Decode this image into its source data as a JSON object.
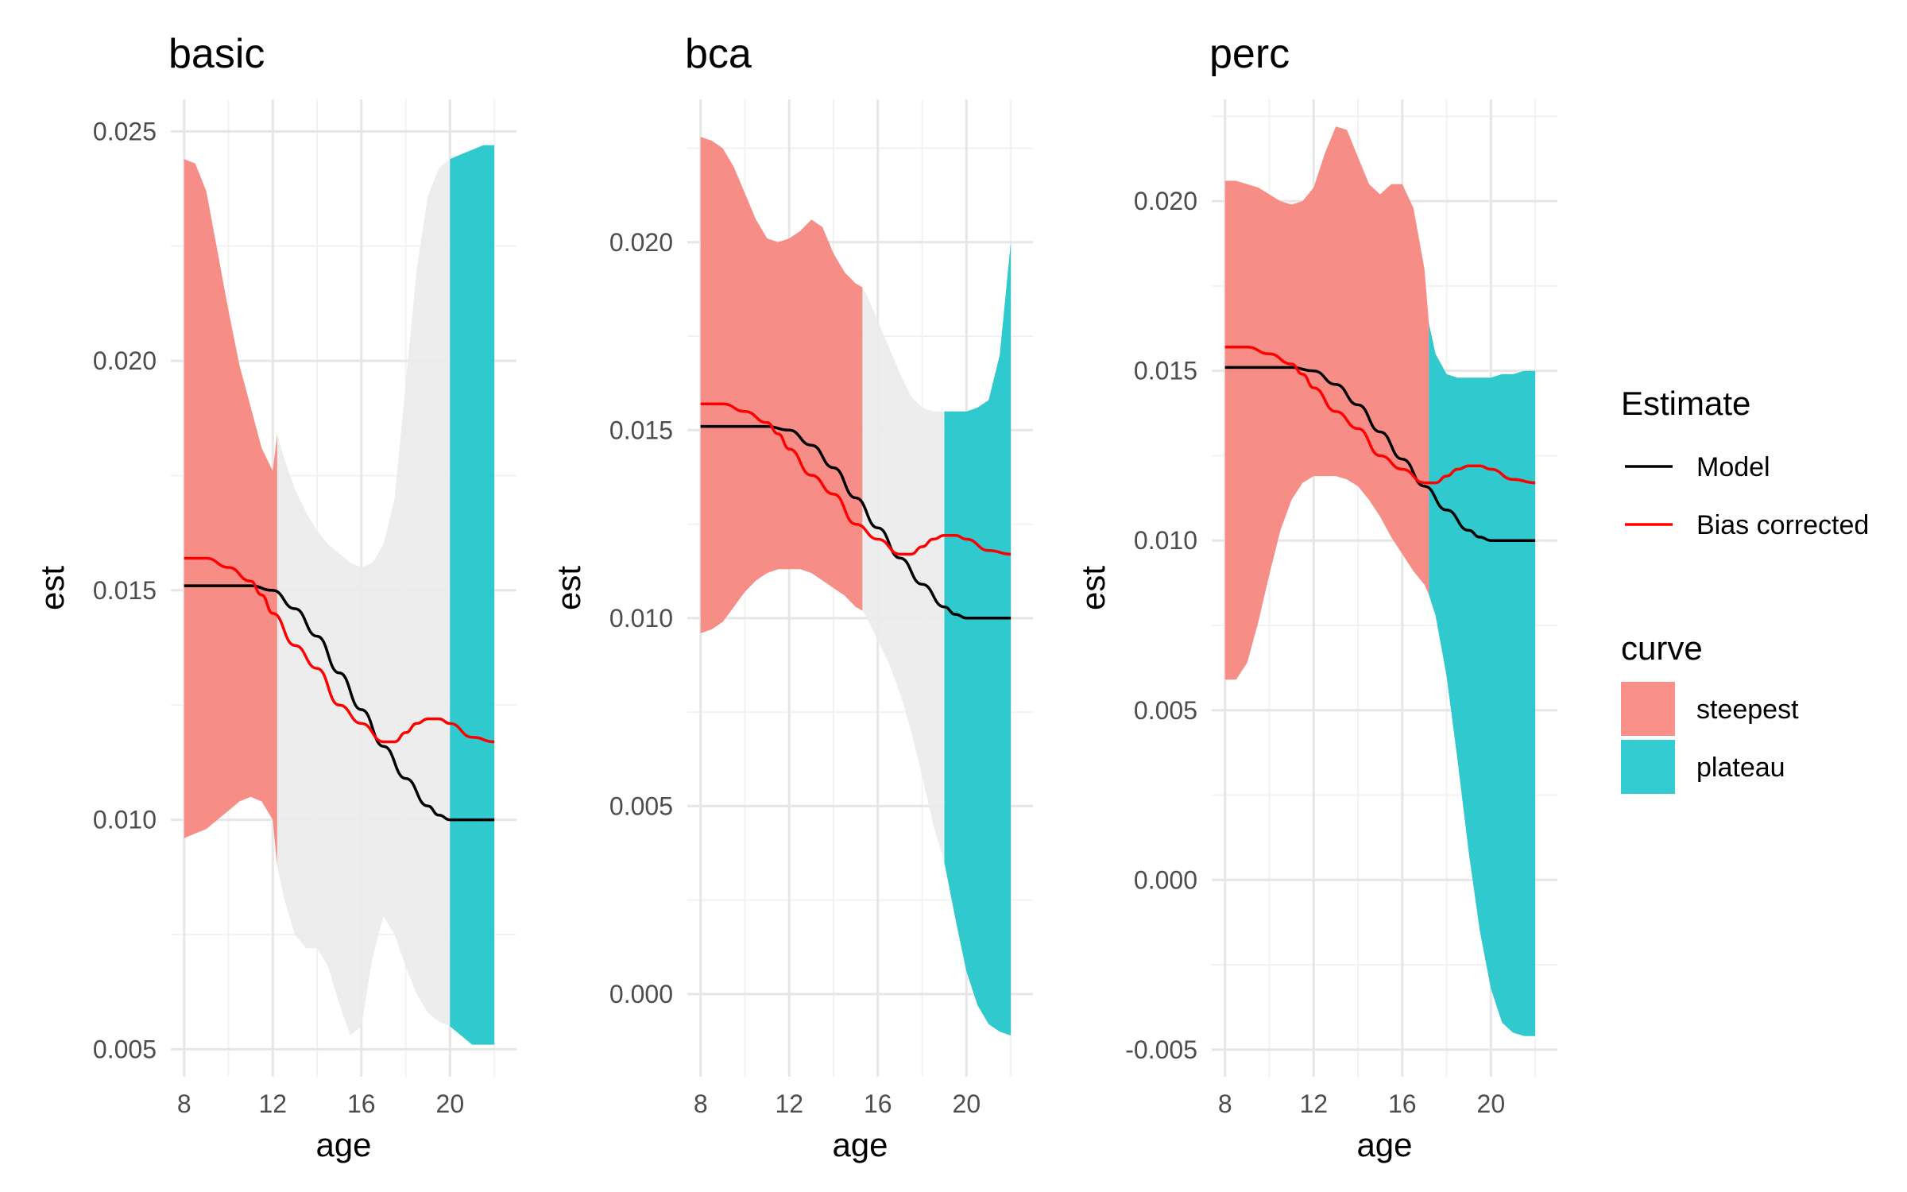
{
  "chart_data": [
    {
      "type": "area",
      "title": "basic",
      "xlabel": "age",
      "ylabel": "est",
      "xlim": [
        7.4,
        23.0
      ],
      "ylim": [
        0.0044,
        0.0257
      ],
      "x_ticks": [
        8,
        12,
        16,
        20
      ],
      "x_tick_labels": [
        "8",
        "12",
        "16",
        "20"
      ],
      "y_ticks": [
        0.005,
        0.01,
        0.015,
        0.02,
        0.025
      ],
      "y_tick_labels": [
        "0.005",
        "0.010",
        "0.015",
        "0.020",
        "0.025"
      ],
      "grid": true,
      "ribbon": {
        "x": [
          8,
          8.5,
          9,
          9.5,
          10,
          10.5,
          11,
          11.5,
          12,
          12.2,
          12.5,
          13,
          13.5,
          14,
          14.5,
          15,
          15.5,
          16,
          16.5,
          17,
          17.5,
          18,
          18.5,
          19,
          19.5,
          20,
          20.5,
          21,
          21.5,
          22
        ],
        "upper": [
          0.0244,
          0.0243,
          0.0237,
          0.0224,
          0.0211,
          0.0199,
          0.019,
          0.0181,
          0.0176,
          0.0184,
          0.0179,
          0.0172,
          0.0167,
          0.0163,
          0.016,
          0.0158,
          0.0156,
          0.0155,
          0.0156,
          0.016,
          0.017,
          0.0195,
          0.022,
          0.0236,
          0.0242,
          0.0244,
          0.0245,
          0.0246,
          0.0247,
          0.0247
        ],
        "lower": [
          0.0096,
          0.0097,
          0.0098,
          0.01,
          0.0102,
          0.0104,
          0.0105,
          0.0104,
          0.01,
          0.009,
          0.0083,
          0.0075,
          0.0072,
          0.0072,
          0.0068,
          0.006,
          0.0053,
          0.0055,
          0.007,
          0.0079,
          0.0075,
          0.0068,
          0.0062,
          0.0058,
          0.0056,
          0.0055,
          0.0053,
          0.0051,
          0.0051,
          0.0051
        ],
        "steepest_range": [
          8,
          12.2
        ],
        "plateau_range": [
          20,
          22
        ]
      },
      "series": [
        {
          "name": "Model",
          "x": [
            8,
            9,
            10,
            11,
            12,
            13,
            14,
            15,
            16,
            17,
            18,
            19,
            19.5,
            20,
            21,
            22
          ],
          "values": [
            0.0151,
            0.0151,
            0.0151,
            0.0151,
            0.015,
            0.0146,
            0.014,
            0.0132,
            0.0124,
            0.0116,
            0.0109,
            0.0103,
            0.0101,
            0.01,
            0.01,
            0.01
          ]
        },
        {
          "name": "Bias corrected",
          "x": [
            8,
            9,
            10,
            11,
            11.5,
            12,
            13,
            14,
            15,
            16,
            17,
            17.5,
            18,
            18.5,
            19,
            19.5,
            20,
            21,
            22
          ],
          "values": [
            0.0157,
            0.0157,
            0.0155,
            0.0152,
            0.0149,
            0.0145,
            0.0138,
            0.0133,
            0.0125,
            0.0121,
            0.0117,
            0.0117,
            0.0119,
            0.0121,
            0.0122,
            0.0122,
            0.0121,
            0.0118,
            0.0117
          ]
        }
      ]
    },
    {
      "type": "area",
      "title": "bca",
      "xlabel": "age",
      "ylabel": "est",
      "xlim": [
        7.4,
        23.0
      ],
      "ylim": [
        -0.0022,
        0.0238
      ],
      "x_ticks": [
        8,
        12,
        16,
        20
      ],
      "x_tick_labels": [
        "8",
        "12",
        "16",
        "20"
      ],
      "y_ticks": [
        0.0,
        0.005,
        0.01,
        0.015,
        0.02
      ],
      "y_tick_labels": [
        "0.000",
        "0.005",
        "0.010",
        "0.015",
        "0.020"
      ],
      "grid": true,
      "ribbon": {
        "x": [
          8,
          8.5,
          9,
          9.5,
          10,
          10.5,
          11,
          11.5,
          12,
          12.5,
          13,
          13.5,
          14,
          14.5,
          15,
          15.3,
          15.5,
          16,
          16.5,
          17,
          17.5,
          18,
          18.5,
          19,
          19.5,
          20,
          20.5,
          21,
          21.5,
          22
        ],
        "upper": [
          0.0228,
          0.0227,
          0.0225,
          0.022,
          0.0213,
          0.0206,
          0.0201,
          0.02,
          0.0201,
          0.0203,
          0.0206,
          0.0204,
          0.0197,
          0.0192,
          0.0189,
          0.0188,
          0.0186,
          0.0179,
          0.0172,
          0.0165,
          0.0159,
          0.0156,
          0.0155,
          0.0155,
          0.0155,
          0.0155,
          0.0156,
          0.0158,
          0.017,
          0.02
        ],
        "lower": [
          0.0096,
          0.0097,
          0.0099,
          0.0103,
          0.0107,
          0.011,
          0.0112,
          0.0113,
          0.0113,
          0.0113,
          0.0112,
          0.011,
          0.0108,
          0.0106,
          0.0103,
          0.0102,
          0.01,
          0.0094,
          0.0088,
          0.008,
          0.007,
          0.0058,
          0.0045,
          0.0035,
          0.002,
          0.0006,
          -0.0003,
          -0.0008,
          -0.001,
          -0.0011
        ],
        "steepest_range": [
          8,
          15.3
        ],
        "plateau_range": [
          19,
          22
        ]
      },
      "series": [
        {
          "name": "Model",
          "x": [
            8,
            9,
            10,
            11,
            12,
            13,
            14,
            15,
            16,
            17,
            18,
            19,
            19.5,
            20,
            21,
            22
          ],
          "values": [
            0.0151,
            0.0151,
            0.0151,
            0.0151,
            0.015,
            0.0146,
            0.014,
            0.0132,
            0.0124,
            0.0116,
            0.0109,
            0.0103,
            0.0101,
            0.01,
            0.01,
            0.01
          ]
        },
        {
          "name": "Bias corrected",
          "x": [
            8,
            9,
            10,
            11,
            11.5,
            12,
            13,
            14,
            15,
            16,
            17,
            17.5,
            18,
            18.5,
            19,
            19.5,
            20,
            21,
            22
          ],
          "values": [
            0.0157,
            0.0157,
            0.0155,
            0.0152,
            0.0149,
            0.0145,
            0.0138,
            0.0133,
            0.0125,
            0.0121,
            0.0117,
            0.0117,
            0.0119,
            0.0121,
            0.0122,
            0.0122,
            0.0121,
            0.0118,
            0.0117
          ]
        }
      ]
    },
    {
      "type": "area",
      "title": "perc",
      "xlabel": "age",
      "ylabel": "est",
      "xlim": [
        7.4,
        23.0
      ],
      "ylim": [
        -0.0058,
        0.023
      ],
      "x_ticks": [
        8,
        12,
        16,
        20
      ],
      "x_tick_labels": [
        "8",
        "12",
        "16",
        "20"
      ],
      "y_ticks": [
        -0.005,
        0.0,
        0.005,
        0.01,
        0.015,
        0.02
      ],
      "y_tick_labels": [
        "-0.005",
        "0.000",
        "0.005",
        "0.010",
        "0.015",
        "0.020"
      ],
      "grid": true,
      "ribbon": {
        "x": [
          8,
          8.5,
          9,
          9.5,
          10,
          10.5,
          11,
          11.5,
          12,
          12.5,
          13,
          13.5,
          14,
          14.5,
          15,
          15.5,
          16,
          16.5,
          17,
          17.2,
          17.5,
          18,
          18.5,
          19,
          19.5,
          20,
          20.5,
          21,
          21.5,
          22
        ],
        "upper": [
          0.0206,
          0.0206,
          0.0205,
          0.0204,
          0.0202,
          0.02,
          0.0199,
          0.02,
          0.0204,
          0.0214,
          0.0222,
          0.0221,
          0.0213,
          0.0205,
          0.0202,
          0.0205,
          0.0205,
          0.0198,
          0.018,
          0.0164,
          0.0155,
          0.0149,
          0.0148,
          0.0148,
          0.0148,
          0.0148,
          0.0149,
          0.0149,
          0.015,
          0.015
        ],
        "lower": [
          0.0059,
          0.0059,
          0.0064,
          0.0076,
          0.009,
          0.0103,
          0.0112,
          0.0117,
          0.0119,
          0.0119,
          0.0119,
          0.0118,
          0.0116,
          0.0112,
          0.0107,
          0.0101,
          0.0096,
          0.0091,
          0.0087,
          0.0084,
          0.0078,
          0.006,
          0.0035,
          0.0008,
          -0.0015,
          -0.0032,
          -0.0042,
          -0.0045,
          -0.0046,
          -0.0046
        ],
        "steepest_range": [
          8,
          17.2
        ],
        "plateau_range": [
          17.2,
          22
        ]
      },
      "series": [
        {
          "name": "Model",
          "x": [
            8,
            9,
            10,
            11,
            12,
            13,
            14,
            15,
            16,
            17,
            18,
            19,
            19.5,
            20,
            21,
            22
          ],
          "values": [
            0.0151,
            0.0151,
            0.0151,
            0.0151,
            0.015,
            0.0146,
            0.014,
            0.0132,
            0.0124,
            0.0116,
            0.0109,
            0.0103,
            0.0101,
            0.01,
            0.01,
            0.01
          ]
        },
        {
          "name": "Bias corrected",
          "x": [
            8,
            9,
            10,
            11,
            11.5,
            12,
            13,
            14,
            15,
            16,
            17,
            17.5,
            18,
            18.5,
            19,
            19.5,
            20,
            21,
            22
          ],
          "values": [
            0.0157,
            0.0157,
            0.0155,
            0.0152,
            0.0149,
            0.0145,
            0.0138,
            0.0133,
            0.0125,
            0.0121,
            0.0117,
            0.0117,
            0.0119,
            0.0121,
            0.0122,
            0.0122,
            0.0121,
            0.0118,
            0.0117
          ]
        }
      ]
    }
  ],
  "legend": {
    "estimate_title": "Estimate",
    "estimate_items": [
      {
        "label": "Model",
        "color": "#000000"
      },
      {
        "label": "Bias corrected",
        "color": "#ff0000"
      }
    ],
    "curve_title": "curve",
    "curve_items": [
      {
        "label": "steepest",
        "color": "#f8766d"
      },
      {
        "label": "plateau",
        "color": "#00bfc4"
      }
    ],
    "placement": "right"
  },
  "colors": {
    "ribbon": "#ebebeb",
    "steepest": "#f8766d",
    "plateau": "#00bfc4",
    "model": "#000000",
    "bias": "#ff0000",
    "grid_major": "#e6e6e6",
    "grid_minor": "#f2f2f2"
  }
}
